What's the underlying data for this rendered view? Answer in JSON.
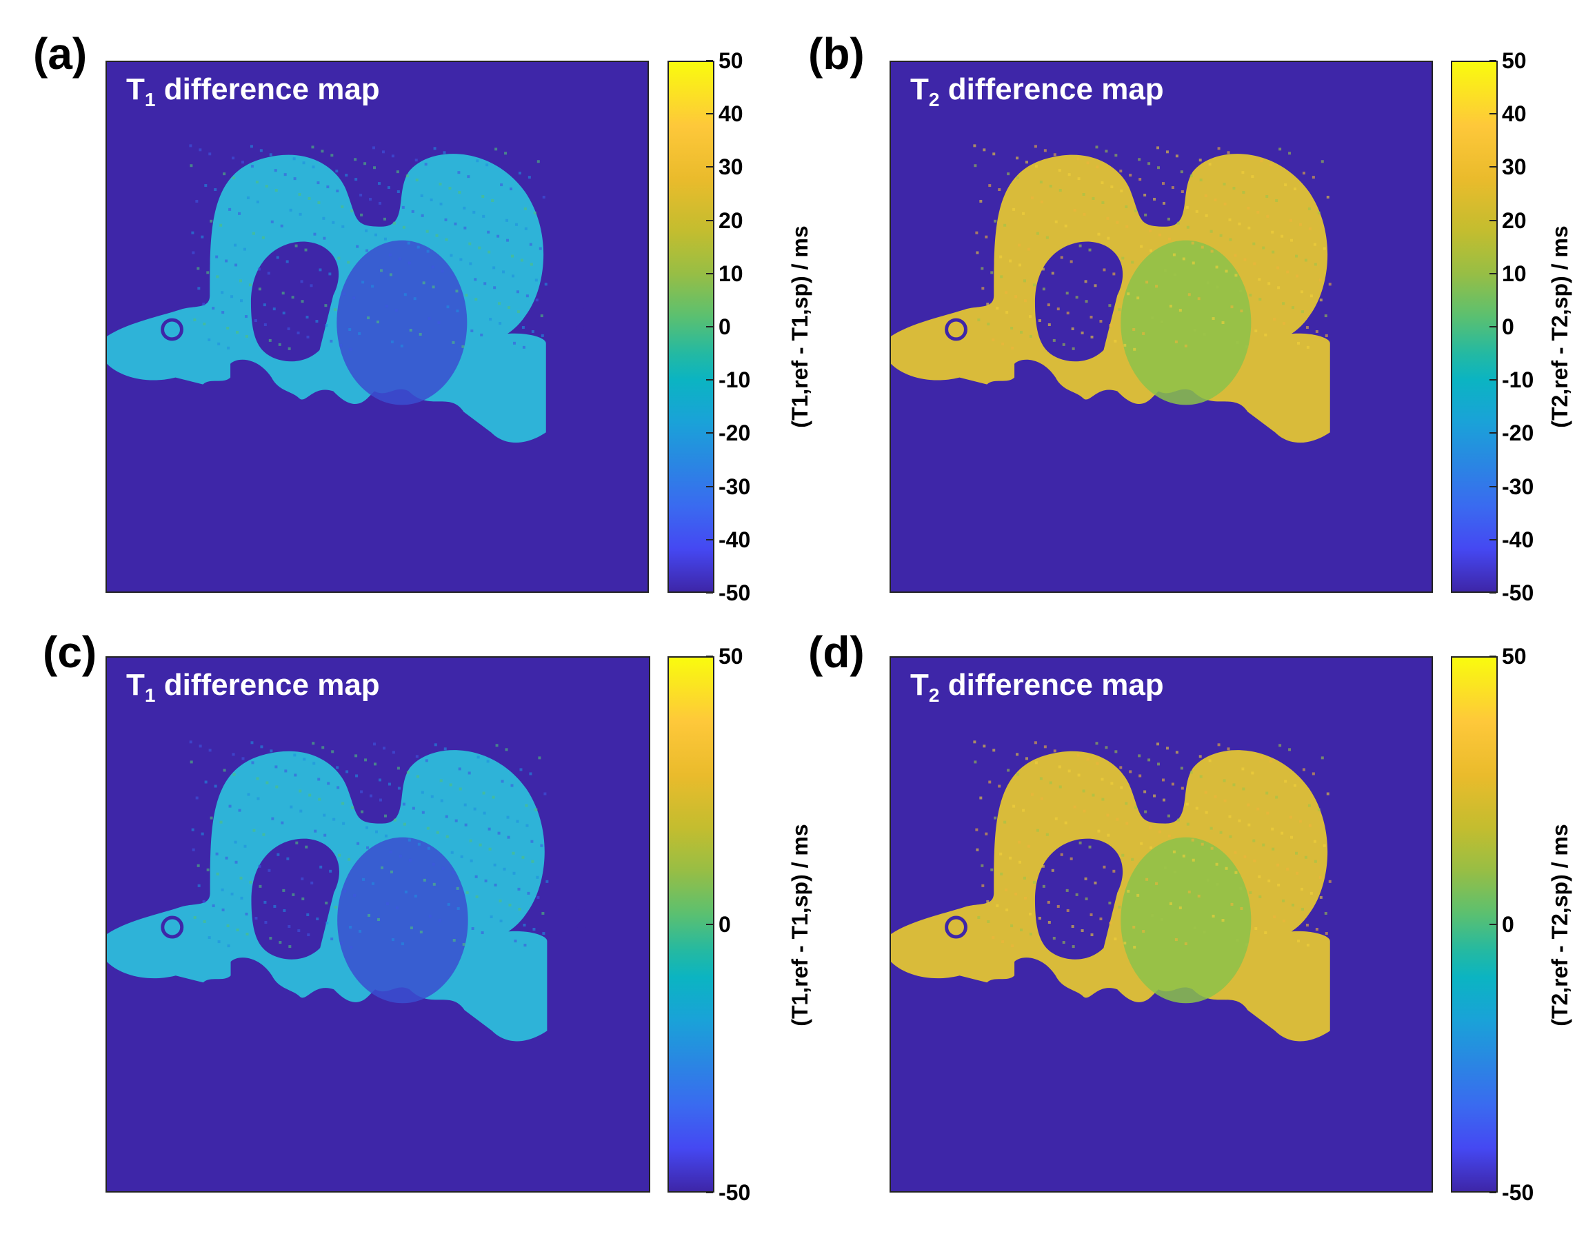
{
  "panels": [
    {
      "letter": "(a)",
      "title_main": "T",
      "title_sub": "1",
      "title_rest": " difference map",
      "colorbar_label": "(T1,ref - T1,sp) / ms",
      "ticks": [
        "50",
        "40",
        "30",
        "20",
        "10",
        "0",
        "-10",
        "-20",
        "-30",
        "-40",
        "-50"
      ],
      "colormap": "parula",
      "range": [
        -50,
        50
      ],
      "tissue_color": "#2eb3d8"
    },
    {
      "letter": "(b)",
      "title_main": "T",
      "title_sub": "2",
      "title_rest": " difference map",
      "colorbar_label": "(T2,ref - T2,sp) / ms",
      "ticks": [
        "50",
        "40",
        "30",
        "20",
        "10",
        "0",
        "-10",
        "-20",
        "-30",
        "-40",
        "-50"
      ],
      "colormap": "parula",
      "range": [
        -50,
        50
      ],
      "tissue_color": "#d9bb3a"
    },
    {
      "letter": "(c)",
      "title_main": "T",
      "title_sub": "1",
      "title_rest": " difference map",
      "colorbar_label": "(T1,ref - T1,sp) / ms",
      "ticks": [
        "50",
        "0",
        "-50"
      ],
      "colormap": "parula",
      "range": [
        -50,
        50
      ],
      "tissue_color": "#2eb3d8"
    },
    {
      "letter": "(d)",
      "title_main": "T",
      "title_sub": "2",
      "title_rest": " difference map",
      "colorbar_label": "(T2,ref - T2,sp) / ms",
      "ticks": [
        "50",
        "0",
        "-50"
      ],
      "colormap": "parula",
      "range": [
        -50,
        50
      ],
      "tissue_color": "#d9bb3a"
    }
  ],
  "colors": {
    "background_map": "#3e26a8",
    "t1_tissue": "#2eb3d8",
    "t2_tissue": "#d9bb3a",
    "t2_core": "#8cc24a"
  }
}
